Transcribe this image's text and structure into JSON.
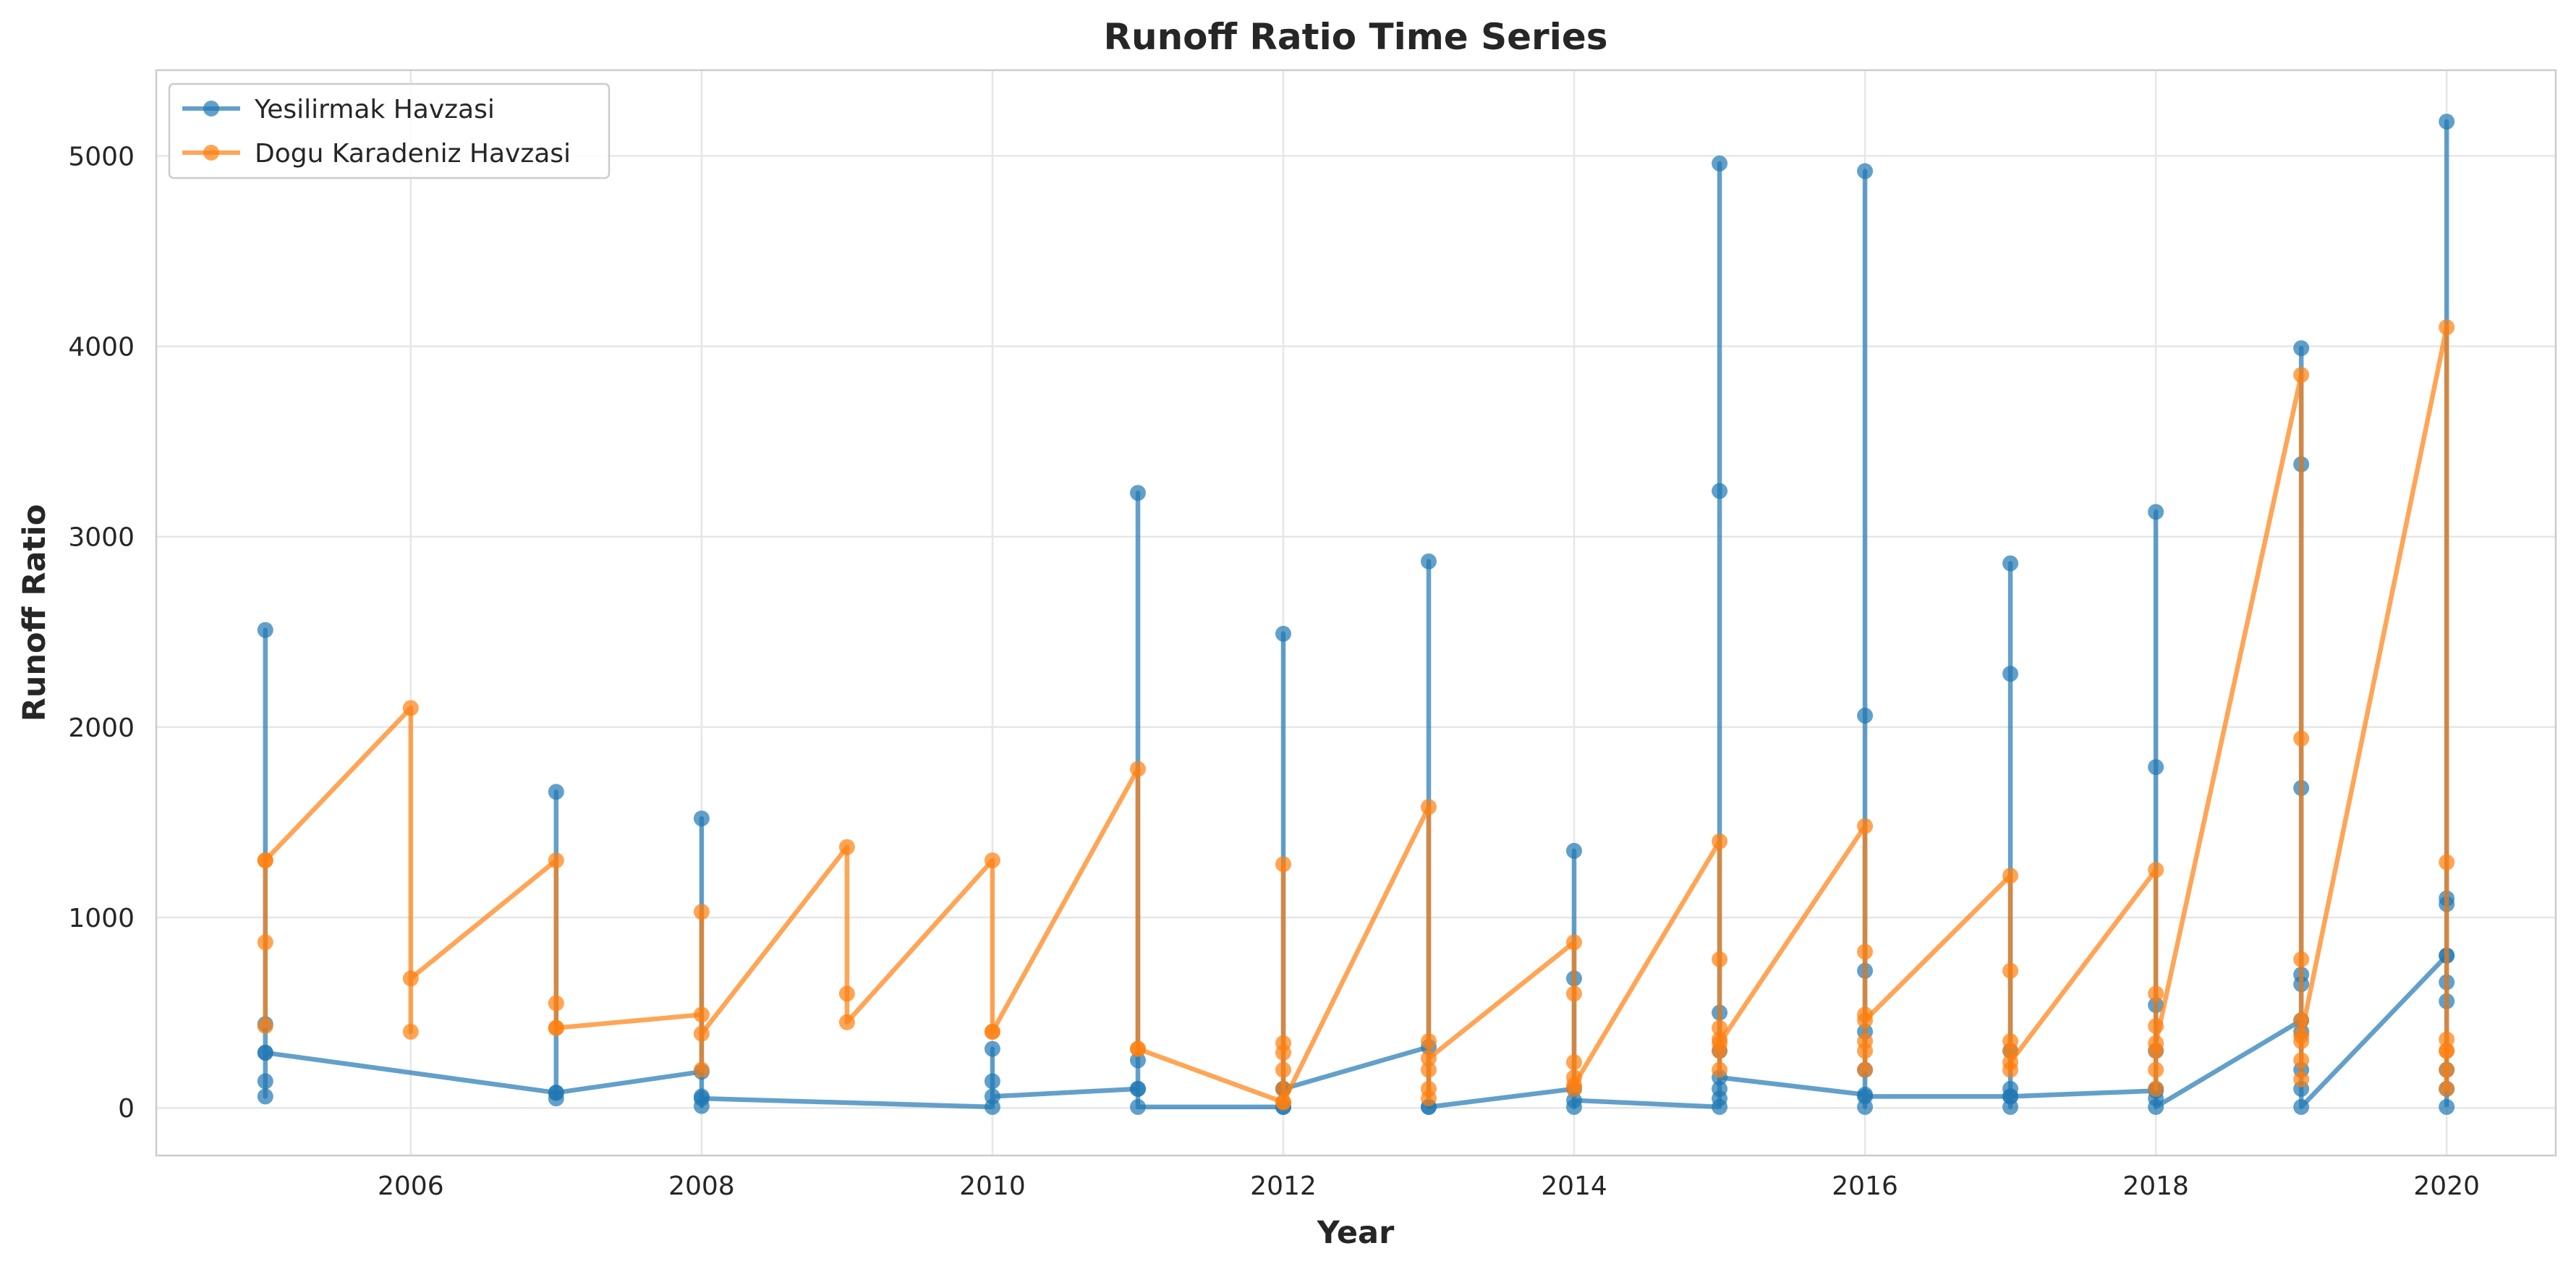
{
  "chart_data": {
    "type": "line",
    "title": "Runoff Ratio Time Series",
    "xlabel": "Year",
    "ylabel": "Runoff Ratio",
    "xlim": [
      2004.25,
      2020.75
    ],
    "ylim": [
      -250,
      5450
    ],
    "xticks": [
      2006,
      2008,
      2010,
      2012,
      2014,
      2016,
      2018,
      2020
    ],
    "yticks": [
      0,
      1000,
      2000,
      3000,
      4000,
      5000
    ],
    "grid": true,
    "legend_position": "top-left",
    "series": [
      {
        "name": "Yesilirmak Havzasi",
        "color": "#1f77b4",
        "x": [
          2005,
          2005,
          2005,
          2005,
          2005,
          2005,
          2007,
          2007,
          2007,
          2007,
          2008,
          2008,
          2008,
          2008,
          2008,
          2010,
          2010,
          2010,
          2010,
          2011,
          2011,
          2011,
          2011,
          2011,
          2012,
          2012,
          2012,
          2012,
          2012,
          2013,
          2013,
          2013,
          2013,
          2014,
          2014,
          2014,
          2014,
          2014,
          2015,
          2015,
          2015,
          2015,
          2015,
          2015,
          2015,
          2015,
          2016,
          2016,
          2016,
          2016,
          2016,
          2016,
          2016,
          2016,
          2017,
          2017,
          2017,
          2017,
          2017,
          2017,
          2017,
          2018,
          2018,
          2018,
          2018,
          2018,
          2018,
          2018,
          2018,
          2019,
          2019,
          2019,
          2019,
          2019,
          2019,
          2019,
          2019,
          2019,
          2019,
          2020,
          2020,
          2020,
          2020,
          2020,
          2020,
          2020,
          2020,
          2020,
          2020
        ],
        "y": [
          290,
          2510,
          440,
          140,
          60,
          290,
          80,
          1660,
          50,
          80,
          190,
          1520,
          60,
          10,
          50,
          5,
          310,
          140,
          60,
          100,
          3230,
          250,
          100,
          5,
          5,
          2490,
          100,
          5,
          100,
          320,
          2870,
          5,
          5,
          100,
          1350,
          680,
          5,
          40,
          5,
          4960,
          3240,
          500,
          300,
          100,
          50,
          160,
          70,
          4920,
          2060,
          720,
          400,
          200,
          5,
          60,
          60,
          2860,
          2280,
          300,
          100,
          5,
          60,
          90,
          3130,
          1790,
          540,
          300,
          100,
          50,
          5,
          460,
          3990,
          3380,
          1680,
          700,
          650,
          400,
          200,
          100,
          5,
          800,
          5180,
          1100,
          1070,
          800,
          660,
          560,
          200,
          100,
          5
        ]
      },
      {
        "name": "Dogu Karadeniz Havzasi",
        "color": "#ff7f0e",
        "x": [
          2005,
          2005,
          2005,
          2005,
          2006,
          2006,
          2006,
          2007,
          2007,
          2007,
          2007,
          2008,
          2008,
          2008,
          2008,
          2009,
          2009,
          2009,
          2010,
          2010,
          2010,
          2011,
          2011,
          2011,
          2012,
          2012,
          2012,
          2012,
          2012,
          2012,
          2012,
          2013,
          2013,
          2013,
          2013,
          2013,
          2013,
          2014,
          2014,
          2014,
          2014,
          2014,
          2014,
          2015,
          2015,
          2015,
          2015,
          2015,
          2015,
          2015,
          2016,
          2016,
          2016,
          2016,
          2016,
          2016,
          2016,
          2017,
          2017,
          2017,
          2017,
          2017,
          2017,
          2018,
          2018,
          2018,
          2018,
          2018,
          2018,
          2018,
          2019,
          2019,
          2019,
          2019,
          2019,
          2019,
          2019,
          2019,
          2020,
          2020,
          2020,
          2020,
          2020,
          2020,
          2020
        ],
        "y": [
          1300,
          870,
          430,
          1300,
          2100,
          400,
          680,
          1300,
          550,
          420,
          420,
          490,
          1030,
          200,
          390,
          1370,
          600,
          450,
          1300,
          400,
          400,
          1780,
          310,
          310,
          30,
          1280,
          340,
          290,
          200,
          100,
          30,
          1580,
          350,
          200,
          100,
          50,
          260,
          870,
          600,
          240,
          160,
          100,
          120,
          1400,
          780,
          420,
          360,
          300,
          200,
          340,
          1480,
          820,
          490,
          350,
          300,
          200,
          460,
          1220,
          720,
          350,
          300,
          200,
          240,
          1250,
          600,
          430,
          300,
          200,
          100,
          340,
          3850,
          1940,
          780,
          460,
          350,
          250,
          150,
          380,
          4100,
          1290,
          360,
          300,
          200,
          100,
          300
        ]
      }
    ]
  }
}
